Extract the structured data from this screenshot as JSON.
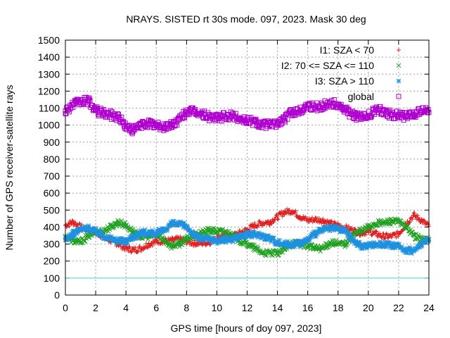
{
  "chart_data": {
    "type": "scatter",
    "title": "NRAYS. SISTED rt 30s mode. 097, 2023. Mask 30 deg",
    "xlabel": "GPS time [hours of doy 097, 2023]",
    "ylabel": "Number of GPS receiver-satellite rays",
    "xlim": [
      0,
      24
    ],
    "ylim": [
      0,
      1500
    ],
    "xticks": [
      "0",
      "2",
      "4",
      "6",
      "8",
      "10",
      "12",
      "14",
      "16",
      "18",
      "20",
      "22",
      "24"
    ],
    "yticks": [
      "0",
      "100",
      "200",
      "300",
      "400",
      "500",
      "600",
      "700",
      "800",
      "900",
      "1000",
      "1100",
      "1200",
      "1300",
      "1400",
      "1500"
    ],
    "grid": true,
    "legend_position": "top-right",
    "reference_line": {
      "y": 100,
      "color": "#4dd8e0"
    },
    "x": [
      0,
      0.5,
      1,
      1.5,
      2,
      2.5,
      3,
      3.5,
      4,
      4.5,
      5,
      5.5,
      6,
      6.5,
      7,
      7.5,
      8,
      8.5,
      9,
      9.5,
      10,
      10.5,
      11,
      11.5,
      12,
      12.5,
      13,
      13.5,
      14,
      14.5,
      15,
      15.5,
      16,
      16.5,
      17,
      17.5,
      18,
      18.5,
      19,
      19.5,
      20,
      20.5,
      21,
      21.5,
      22,
      22.5,
      23,
      23.5,
      24
    ],
    "series": [
      {
        "name": "I1: SZA < 70",
        "marker": "+",
        "color": "#e02020",
        "values": [
          410,
          430,
          400,
          380,
          370,
          345,
          320,
          300,
          275,
          265,
          275,
          300,
          315,
          320,
          320,
          330,
          315,
          305,
          305,
          310,
          335,
          360,
          345,
          365,
          385,
          410,
          425,
          430,
          460,
          490,
          495,
          460,
          440,
          445,
          440,
          420,
          410,
          395,
          380,
          365,
          375,
          360,
          345,
          345,
          360,
          420,
          470,
          440,
          405
        ]
      },
      {
        "name": "I2: 70 <= SZA <= 110",
        "marker": "x",
        "color": "#20a020",
        "values": [
          340,
          320,
          310,
          350,
          370,
          375,
          400,
          430,
          410,
          370,
          345,
          345,
          355,
          325,
          290,
          300,
          330,
          350,
          365,
          380,
          375,
          370,
          360,
          320,
          300,
          275,
          250,
          245,
          245,
          270,
          310,
          300,
          290,
          275,
          275,
          310,
          300,
          300,
          355,
          375,
          400,
          420,
          425,
          435,
          430,
          400,
          350,
          325,
          330
        ]
      },
      {
        "name": "I3: SZA > 110",
        "marker": "*",
        "color": "#1e90e0",
        "values": [
          325,
          360,
          385,
          395,
          375,
          350,
          330,
          320,
          315,
          345,
          365,
          370,
          360,
          380,
          420,
          415,
          405,
          350,
          330,
          330,
          320,
          325,
          330,
          345,
          355,
          355,
          350,
          335,
          310,
          300,
          300,
          305,
          325,
          360,
          385,
          390,
          390,
          375,
          320,
          290,
          290,
          300,
          300,
          290,
          285,
          265,
          260,
          300,
          325
        ]
      },
      {
        "name": "global",
        "marker": "square",
        "color": "#b000d0",
        "values": [
          1085,
          1120,
          1135,
          1145,
          1085,
          1070,
          1060,
          1050,
          990,
          970,
          1000,
          1010,
          995,
          990,
          1000,
          1030,
          1080,
          1080,
          1065,
          1050,
          1040,
          1050,
          1055,
          1040,
          1030,
          1020,
          1005,
          1000,
          1010,
          1040,
          1080,
          1085,
          1120,
          1105,
          1115,
          1130,
          1120,
          1085,
          1060,
          1045,
          1055,
          1090,
          1085,
          1060,
          1060,
          1050,
          1060,
          1085,
          1075
        ]
      }
    ]
  }
}
